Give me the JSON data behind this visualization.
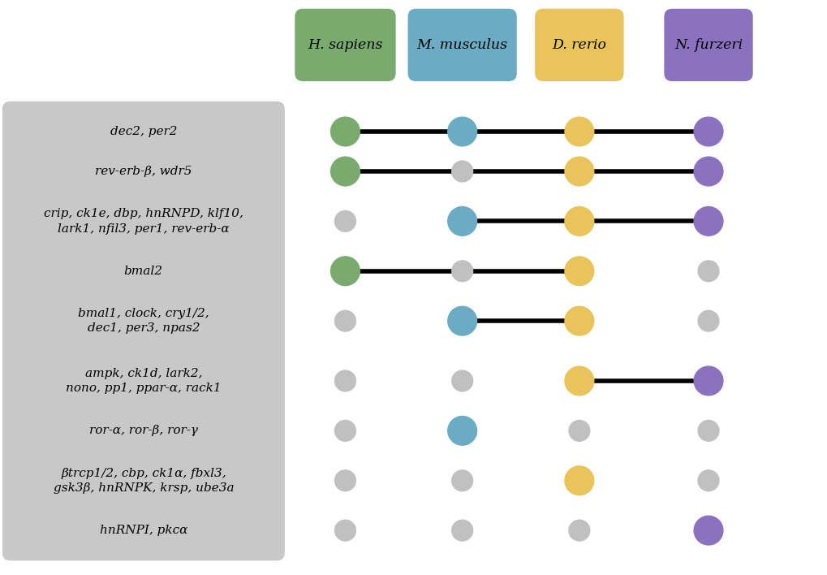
{
  "species_labels": [
    "H. sapiens",
    "M. musculus",
    "D. rerio",
    "N. furzeri"
  ],
  "species_colors": [
    "#7aab6e",
    "#6bacc4",
    "#e8c45a",
    "#8b72be"
  ],
  "header_colors": [
    "#7aab6e",
    "#6bacc4",
    "#e8c45a",
    "#8b72be"
  ],
  "background_color": "#ffffff",
  "rows": [
    {
      "label": "dec2, per2",
      "lines": [
        0,
        3
      ],
      "active_dots": [
        0,
        1,
        2,
        3
      ]
    },
    {
      "label": "rev-erb-β, wdr5",
      "lines": [
        0,
        3
      ],
      "active_dots": [
        0,
        2,
        3
      ]
    },
    {
      "label": "crip, ck1e, dbp, hnRNPD, klf10,\nlark1, nfil3, per1, rev-erb-α",
      "lines": [
        1,
        3
      ],
      "active_dots": [
        1,
        2,
        3
      ]
    },
    {
      "label": "bmal2",
      "lines": [
        0,
        2
      ],
      "active_dots": [
        0,
        2
      ]
    },
    {
      "label": "bmal1, clock, cry1/2,\ndec1, per3, npas2",
      "lines": [
        1,
        2
      ],
      "active_dots": [
        1,
        2
      ]
    },
    {
      "label": "ampk, ck1d, lark2,\nnono, pp1, ppar-α, rack1",
      "lines": [
        2,
        3
      ],
      "active_dots": [
        2,
        3
      ]
    },
    {
      "label": "ror-α, ror-β, ror-γ",
      "lines": null,
      "active_dots": [
        1
      ]
    },
    {
      "label": "βtrcp1/2, cbp, ck1α, fbxl3,\ngsk3β, hnRNPK, krsp, ube3a",
      "lines": null,
      "active_dots": [
        2
      ]
    },
    {
      "label": "hnRNPI, pkcα",
      "lines": null,
      "active_dots": [
        3
      ]
    }
  ],
  "dot_active_size": 18,
  "dot_inactive_size": 13,
  "dot_inactive_color": "#c0c0c0",
  "line_color": "#000000",
  "line_width": 4.0,
  "label_box_color": "#c8c8c8",
  "label_fontsize": 11.0,
  "header_fontsize": 12.5
}
